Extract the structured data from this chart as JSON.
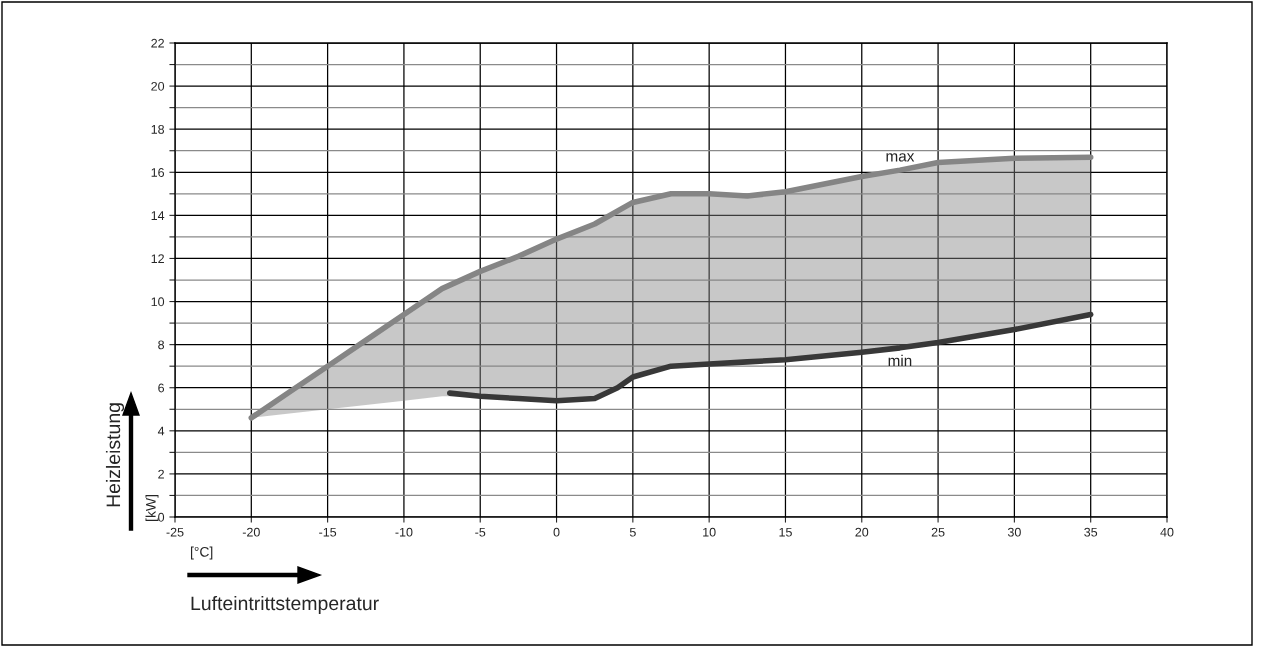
{
  "chart_data": {
    "type": "line",
    "xlabel": "Lufteintrittstemperatur",
    "ylabel": "Heizleistung",
    "annotations": [
      "[°C]",
      "[kW]"
    ],
    "xlim": [
      -25,
      40
    ],
    "xticks": [
      -25,
      -20,
      -15,
      -10,
      -5,
      0,
      5,
      10,
      15,
      20,
      25,
      30,
      35,
      40
    ],
    "ylim": [
      0,
      22
    ],
    "yticks": [
      0,
      {
        "value": 1,
        "label": null
      },
      2,
      {
        "value": 3,
        "label": null
      },
      4,
      {
        "value": 5,
        "label": null
      },
      6,
      {
        "value": 7,
        "label": null
      },
      8,
      {
        "value": 9,
        "label": null
      },
      10,
      {
        "value": 11,
        "label": null
      },
      12,
      {
        "value": 13,
        "label": null
      },
      14,
      {
        "value": 15,
        "label": null
      },
      16,
      {
        "value": 17,
        "label": null
      },
      18,
      {
        "value": 19,
        "label": null
      },
      20,
      {
        "value": 21,
        "label": null
      },
      22
    ],
    "grid": true,
    "legend": false,
    "marker": "none",
    "line_style": "solid",
    "series": [
      {
        "name": "max",
        "color": "#858585",
        "x": [
          -20,
          -17.5,
          -15,
          -12.5,
          -10,
          -7.5,
          -5,
          -2.5,
          0,
          2.5,
          5,
          7.5,
          10,
          12.5,
          15,
          20,
          22.5,
          25,
          30,
          35
        ],
        "values": [
          4.6,
          5.8,
          7.0,
          8.2,
          9.4,
          10.6,
          11.4,
          12.1,
          12.9,
          13.6,
          14.6,
          15.0,
          15.0,
          14.9,
          15.1,
          15.8,
          16.1,
          16.45,
          16.65,
          16.7
        ],
        "lower": [
          4.6,
          4.8,
          5.0,
          5.2,
          5.4,
          5.6,
          5.6,
          5.5,
          5.4,
          5.5,
          6.5,
          7.0,
          7.1,
          7.2,
          7.3,
          7.65,
          7.85,
          8.1,
          8.7,
          9.4
        ],
        "upper": [
          4.6,
          5.8,
          7.0,
          8.2,
          9.4,
          10.6,
          11.4,
          12.1,
          12.9,
          13.6,
          14.6,
          15.0,
          15.0,
          14.9,
          15.1,
          15.8,
          16.1,
          16.45,
          16.65,
          16.7
        ]
      },
      {
        "name": "min",
        "color": "#383838",
        "x": [
          -7,
          -5,
          -2.5,
          0,
          2.5,
          4,
          5,
          7.5,
          10,
          12.5,
          15,
          20,
          22.5,
          25,
          30,
          35
        ],
        "values": [
          5.75,
          5.6,
          5.5,
          5.4,
          5.5,
          6.0,
          6.5,
          7.0,
          7.1,
          7.2,
          7.3,
          7.65,
          7.85,
          8.1,
          8.7,
          9.4
        ]
      }
    ]
  }
}
